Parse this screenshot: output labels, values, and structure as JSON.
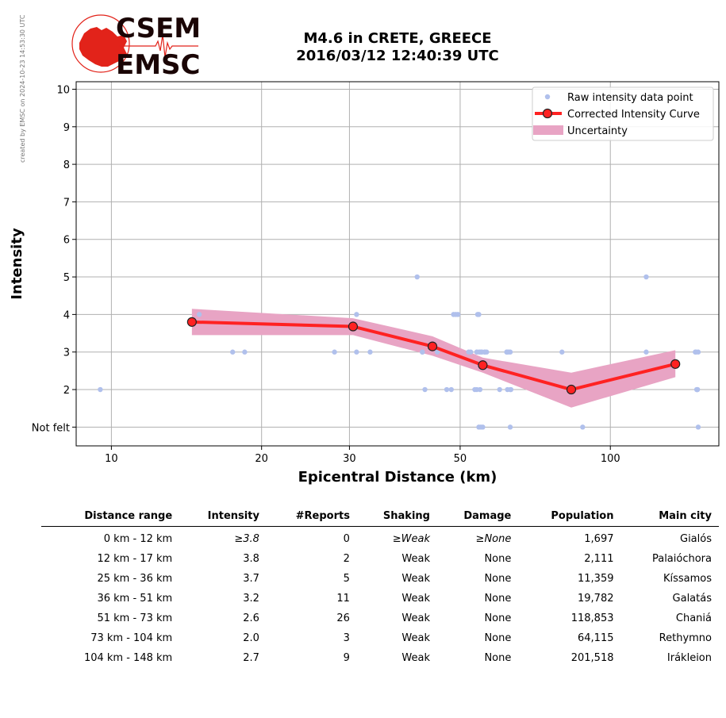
{
  "side_note": "created by EMSC on 2024-10-23 14:53:30 UTC",
  "logo": {
    "line1": "CSEM",
    "line2": "EMSC",
    "color": "#e2231a"
  },
  "title_line1": "M4.6 in CRETE, GREECE",
  "title_line2": "2016/03/12 12:40:39 UTC",
  "chart_data": {
    "type": "scatter",
    "x_scale": "log",
    "xlabel": "Epicentral Distance (km)",
    "ylabel": "Intensity",
    "xlim": [
      8.5,
      165
    ],
    "ylim": [
      0.5,
      10.2
    ],
    "x_ticks": [
      10,
      20,
      30,
      50,
      100
    ],
    "y_ticks": [
      {
        "v": 1,
        "label": "Not felt"
      },
      {
        "v": 2,
        "label": "2"
      },
      {
        "v": 3,
        "label": "3"
      },
      {
        "v": 4,
        "label": "4"
      },
      {
        "v": 5,
        "label": "5"
      },
      {
        "v": 6,
        "label": "6"
      },
      {
        "v": 7,
        "label": "7"
      },
      {
        "v": 8,
        "label": "8"
      },
      {
        "v": 9,
        "label": "9"
      },
      {
        "v": 10,
        "label": "10"
      }
    ],
    "grid": true,
    "legend_position": "top-right",
    "colors": {
      "raw": "#b0c0ec",
      "curve": "#ff2222",
      "marker_edge": "#222222",
      "uncertainty": "#e8a4c4"
    },
    "series": [
      {
        "name": "Raw intensity data point",
        "kind": "points",
        "x": [
          9.5,
          15,
          17.5,
          18.5,
          28,
          31,
          31,
          33,
          41,
          42,
          42,
          42.5,
          45,
          47,
          48,
          48.5,
          49,
          49.5,
          52,
          52.5,
          53.5,
          54,
          54,
          54,
          54.2,
          54.5,
          54.5,
          54.6,
          54.8,
          55,
          55,
          55.3,
          55.5,
          56,
          56,
          56.5,
          60,
          62,
          62,
          62.2,
          62.5,
          63,
          63,
          63,
          63.2,
          80,
          88,
          118,
          118,
          148,
          148.5,
          149,
          149,
          149.5,
          149.5,
          150,
          150
        ],
        "y": [
          2,
          4,
          3,
          3,
          3,
          4,
          3,
          3,
          5,
          3,
          3,
          2,
          3,
          2,
          2,
          4,
          4,
          4,
          3,
          3,
          2,
          2,
          3,
          3,
          4,
          4,
          1,
          3,
          2,
          3,
          1,
          3,
          1,
          3,
          3,
          3,
          2,
          3,
          3,
          2,
          3,
          2,
          1,
          3,
          2,
          3,
          1,
          5,
          3,
          3,
          3,
          2,
          2,
          2,
          2,
          1,
          3
        ]
      },
      {
        "name": "Corrected Intensity Curve",
        "kind": "line",
        "x": [
          14.5,
          30.5,
          44.0,
          55.5,
          83.5,
          135.0
        ],
        "y": [
          3.8,
          3.68,
          3.15,
          2.65,
          2.0,
          2.68
        ]
      },
      {
        "name": "Uncertainty",
        "kind": "band",
        "x": [
          14.5,
          30.5,
          44.0,
          55.5,
          83.5,
          135.0
        ],
        "upper": [
          4.15,
          3.9,
          3.42,
          2.85,
          2.45,
          3.05
        ],
        "lower": [
          3.45,
          3.45,
          2.9,
          2.45,
          1.52,
          2.33
        ]
      }
    ]
  },
  "table": {
    "headers": [
      "Distance range",
      "Intensity",
      "#Reports",
      "Shaking",
      "Damage",
      "Population",
      "Main city"
    ],
    "rows": [
      {
        "range": "0 km -   12 km",
        "intensity": "≥3.8",
        "reports": "0",
        "shaking": "≥Weak",
        "damage": "≥None",
        "population": "1,697",
        "city": "Gialós"
      },
      {
        "range": "12 km -   17 km",
        "intensity": "3.8",
        "reports": "2",
        "shaking": "Weak",
        "damage": "None",
        "population": "2,111",
        "city": "Palaióchora"
      },
      {
        "range": "25 km -   36 km",
        "intensity": "3.7",
        "reports": "5",
        "shaking": "Weak",
        "damage": "None",
        "population": "11,359",
        "city": "Kíssamos"
      },
      {
        "range": "36 km -   51 km",
        "intensity": "3.2",
        "reports": "11",
        "shaking": "Weak",
        "damage": "None",
        "population": "19,782",
        "city": "Galatás"
      },
      {
        "range": "51 km -   73 km",
        "intensity": "2.6",
        "reports": "26",
        "shaking": "Weak",
        "damage": "None",
        "population": "118,853",
        "city": "Chaniá"
      },
      {
        "range": "73 km -  104 km",
        "intensity": "2.0",
        "reports": "3",
        "shaking": "Weak",
        "damage": "None",
        "population": "64,115",
        "city": "Rethymno"
      },
      {
        "range": "104 km -  148 km",
        "intensity": "2.7",
        "reports": "9",
        "shaking": "Weak",
        "damage": "None",
        "population": "201,518",
        "city": "Irákleion"
      }
    ]
  }
}
